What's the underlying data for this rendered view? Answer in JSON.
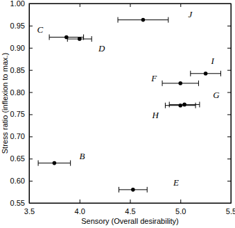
{
  "chart_data": {
    "type": "scatter",
    "x_label": "Sensory (Overall desirability)",
    "y_label": "Stress ratio (inflexion to max.)",
    "point_labels": [
      "J",
      "C",
      "D",
      "I",
      "F",
      "G",
      "H",
      "B",
      "E"
    ],
    "x": [
      4.63,
      3.87,
      4.0,
      5.25,
      5.0,
      5.04,
      5.0,
      3.75,
      4.53
    ],
    "values": [
      0.963,
      0.924,
      0.92,
      0.842,
      0.82,
      0.772,
      0.77,
      0.64,
      0.58
    ],
    "x_error": [
      0.25,
      0.17,
      0.12,
      0.15,
      0.18,
      0.15,
      0.15,
      0.16,
      0.14
    ],
    "color": "#000000",
    "marker": "circle",
    "xlim": [
      3.5,
      5.5
    ],
    "xticks": [
      3.5,
      {
        "value": 4.0,
        "label": "4.0"
      },
      4.5,
      {
        "value": 5.0,
        "label": "5.0"
      },
      5.5
    ],
    "ylim": [
      0.55,
      1.0
    ],
    "yticks": [
      0.55,
      {
        "value": 0.6,
        "label": "0.60"
      },
      0.65,
      {
        "value": 0.7,
        "label": "0.70"
      },
      0.75,
      {
        "value": 0.8,
        "label": "0.80"
      },
      0.85,
      {
        "value": 0.9,
        "label": "0.90"
      },
      0.95,
      {
        "value": 1.0,
        "label": "1.00"
      }
    ]
  }
}
